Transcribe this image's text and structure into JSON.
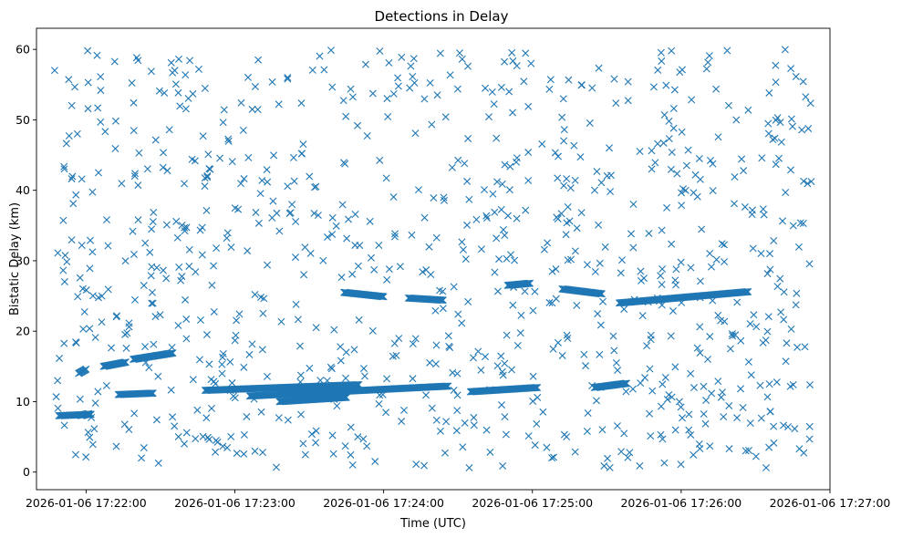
{
  "chart_data": {
    "type": "scatter",
    "title": "Detections in Delay",
    "xlabel": "Time (UTC)",
    "ylabel": "Bistatic Delay (km)",
    "x_axis_type": "time",
    "xlim": [
      "2026-01-06 17:21:40",
      "2026-01-06 17:27:00"
    ],
    "ylim": [
      -2.5,
      63
    ],
    "x_ticks": [
      "2026-01-06 17:22:00",
      "2026-01-06 17:23:00",
      "2026-01-06 17:24:00",
      "2026-01-06 17:25:00",
      "2026-01-06 17:26:00",
      "2026-01-06 17:27:00"
    ],
    "y_ticks": [
      0,
      10,
      20,
      30,
      40,
      50,
      60
    ],
    "marker": "x",
    "color": "#1f77b4",
    "grid": false,
    "legend": "none",
    "x_start": "2026-01-06 17:21:47",
    "x_end": "2026-01-06 17:26:53",
    "tracks": [
      {
        "x": [
          "2026-01-06 17:21:49",
          "2026-01-06 17:22:02"
        ],
        "y": [
          8.0,
          8.2
        ]
      },
      {
        "x": [
          "2026-01-06 17:21:57",
          "2026-01-06 17:22:00"
        ],
        "y": [
          14.0,
          14.6
        ]
      },
      {
        "x": [
          "2026-01-06 17:21:58",
          "2026-01-06 17:22:01"
        ],
        "y": [
          8.0,
          8.3
        ]
      },
      {
        "x": [
          "2026-01-06 17:22:07",
          "2026-01-06 17:22:16"
        ],
        "y": [
          15.0,
          15.6
        ]
      },
      {
        "x": [
          "2026-01-06 17:22:13",
          "2026-01-06 17:22:27"
        ],
        "y": [
          11.0,
          11.2
        ]
      },
      {
        "x": [
          "2026-01-06 17:22:19",
          "2026-01-06 17:22:35"
        ],
        "y": [
          16.0,
          16.9
        ]
      },
      {
        "x": [
          "2026-01-06 17:22:48",
          "2026-01-06 17:23:50"
        ],
        "y": [
          11.6,
          12.4
        ]
      },
      {
        "x": [
          "2026-01-06 17:23:06",
          "2026-01-06 17:24:26"
        ],
        "y": [
          10.8,
          12.2
        ]
      },
      {
        "x": [
          "2026-01-06 17:23:18",
          "2026-01-06 17:23:45"
        ],
        "y": [
          10.0,
          10.6
        ]
      },
      {
        "x": [
          "2026-01-06 17:23:44",
          "2026-01-06 17:24:00"
        ],
        "y": [
          25.5,
          24.9
        ]
      },
      {
        "x": [
          "2026-01-06 17:24:10",
          "2026-01-06 17:24:24"
        ],
        "y": [
          24.7,
          24.4
        ]
      },
      {
        "x": [
          "2026-01-06 17:24:35",
          "2026-01-06 17:25:02"
        ],
        "y": [
          11.4,
          12.0
        ]
      },
      {
        "x": [
          "2026-01-06 17:24:50",
          "2026-01-06 17:24:59"
        ],
        "y": [
          26.5,
          26.8
        ]
      },
      {
        "x": [
          "2026-01-06 17:25:12",
          "2026-01-06 17:25:28"
        ],
        "y": [
          26.0,
          25.3
        ]
      },
      {
        "x": [
          "2026-01-06 17:25:25",
          "2026-01-06 17:25:38"
        ],
        "y": [
          12.0,
          12.6
        ]
      },
      {
        "x": [
          "2026-01-06 17:25:35",
          "2026-01-06 17:26:27"
        ],
        "y": [
          24.0,
          25.6
        ]
      }
    ],
    "clutter_count": 900
  }
}
